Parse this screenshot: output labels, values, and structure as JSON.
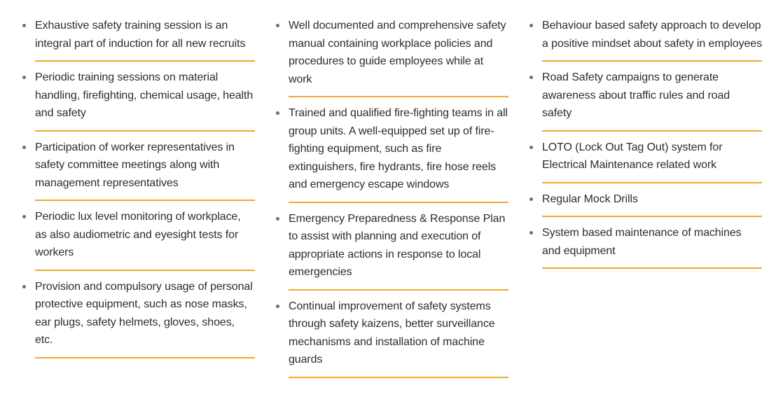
{
  "columns": [
    {
      "items": [
        "Exhaustive safety training session is an integral part of induction for all new recruits",
        "Periodic training sessions on material handling, firefighting, chemical usage, health and safety",
        "Participation of worker representatives in safety committee meetings along with management representatives",
        "Periodic lux level monitoring of workplace, as also audiometric and eyesight tests for workers",
        "Provision and compulsory usage of personal protective equipment, such as nose masks, ear plugs, safety helmets, gloves, shoes, etc."
      ]
    },
    {
      "items": [
        "Well documented and comprehensive safety manual containing workplace policies and procedures to guide employees while at work",
        "Trained and qualified fire-fighting teams in all group units. A well-equipped set up of fire-fighting equipment, such as fire extinguishers, fire hydrants, fire hose reels and emergency escape windows",
        "Emergency Preparedness & Response Plan to assist with planning and execution of appropriate actions in response to local emergencies",
        "Continual improvement of safety systems through safety kaizens, better surveillance mechanisms and installation of machine guards"
      ]
    },
    {
      "items": [
        "Behaviour based safety approach to develop a positive mindset about safety in employees",
        "Road Safety campaigns to generate awareness about traffic rules and road safety",
        "LOTO (Lock Out Tag Out) system for Electrical Maintenance related work",
        "Regular Mock Drills",
        "System based maintenance of machines and equipment"
      ]
    }
  ],
  "colors": {
    "divider": "#f0a92f",
    "bullet": "#6f6f6f",
    "text": "#2d2d2d"
  }
}
